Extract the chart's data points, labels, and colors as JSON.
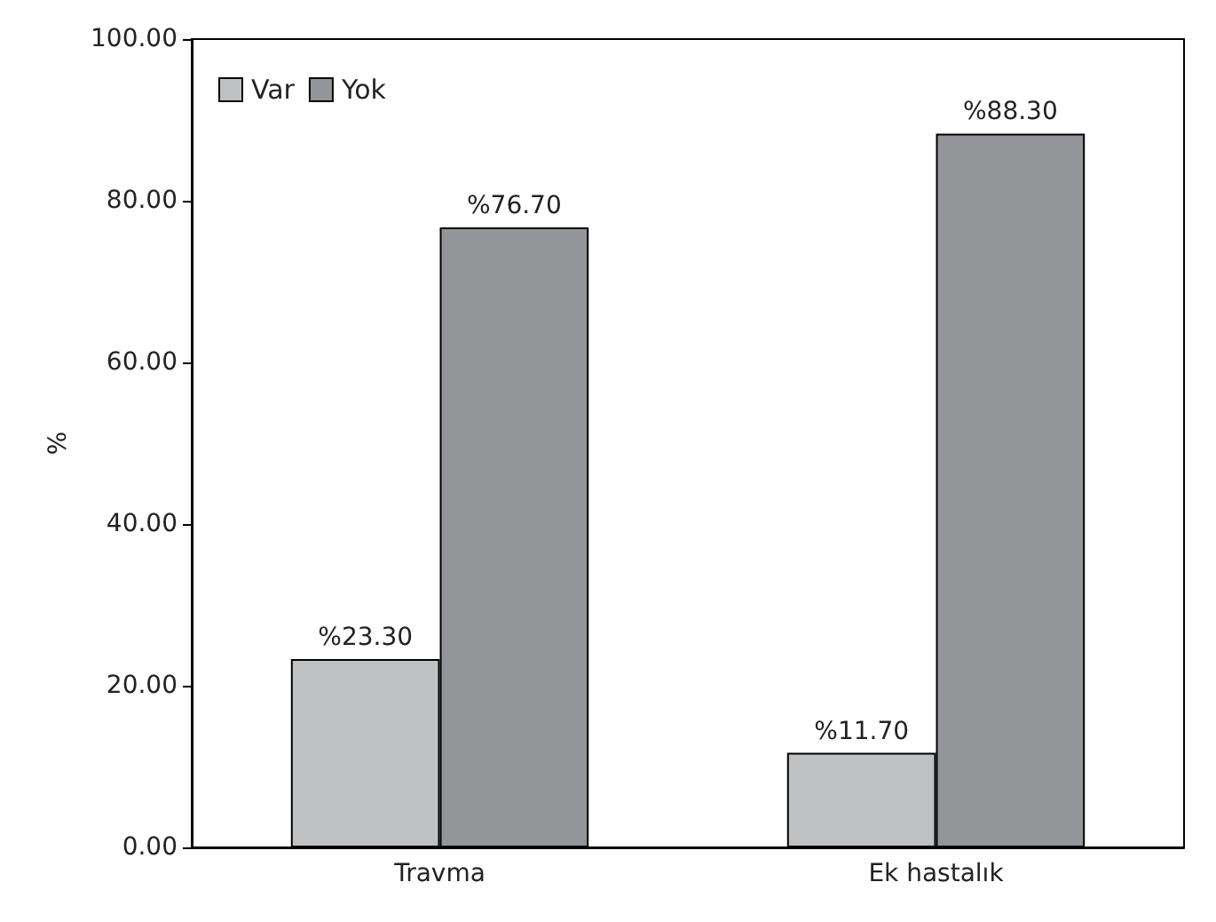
{
  "chart_data": {
    "type": "bar",
    "ylabel": "%",
    "categories": [
      "Travma",
      "Ek hastalık"
    ],
    "series": [
      {
        "name": "Var",
        "color": "#c0c1c3",
        "values": [
          23.3,
          11.7
        ],
        "value_labels": [
          "%23.30",
          "%11.70"
        ]
      },
      {
        "name": "Yok",
        "color": "#939598",
        "values": [
          76.7,
          88.3
        ],
        "value_labels": [
          "%76.70",
          "%88.30"
        ]
      }
    ],
    "ylim": [
      0,
      100
    ],
    "yticks": [
      {
        "value": 0,
        "label": "0.00"
      },
      {
        "value": 20,
        "label": "20.00"
      },
      {
        "value": 40,
        "label": "40.00"
      },
      {
        "value": 60,
        "label": "60.00"
      },
      {
        "value": 80,
        "label": "80.00"
      },
      {
        "value": 100,
        "label": "100.00"
      }
    ],
    "grid": false,
    "legend": "top left"
  }
}
